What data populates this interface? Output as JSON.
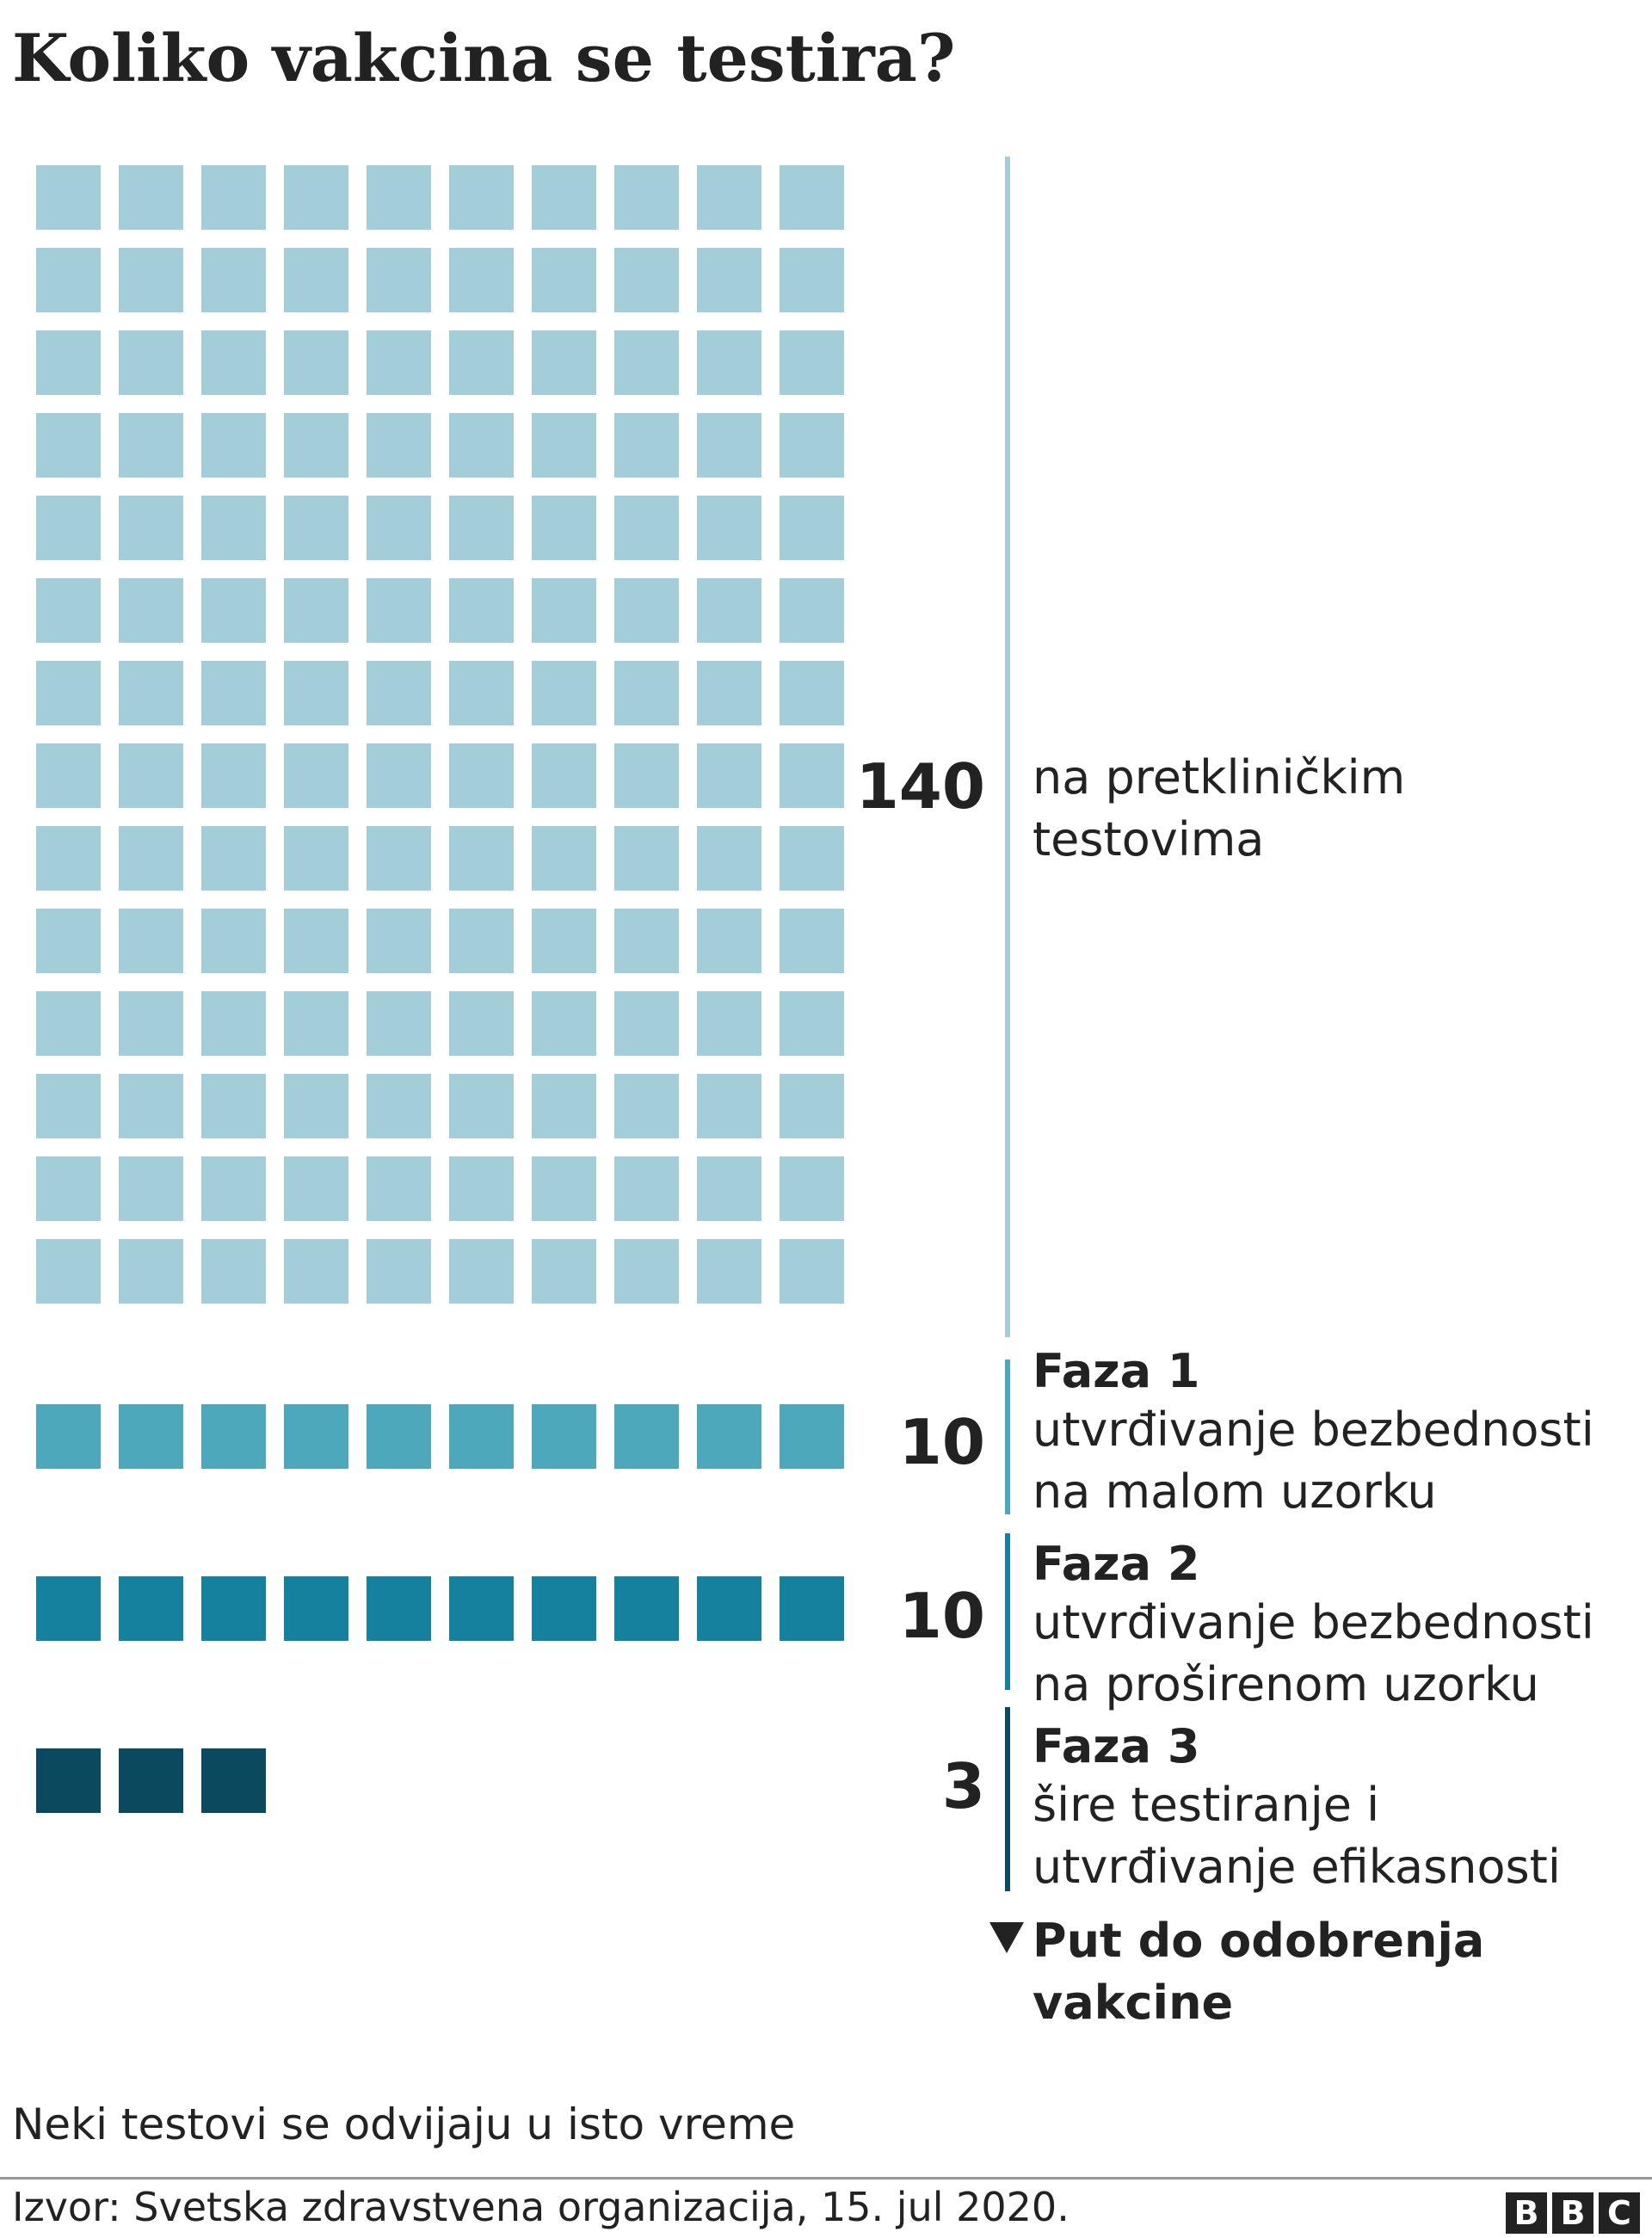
{
  "title": "Koliko vakcina se testira?",
  "chart_data": {
    "type": "waffle",
    "title": "Koliko vakcina se testira?",
    "unit_per_square": 1,
    "squares_per_row": 10,
    "series": [
      {
        "name": "na pretkliničkim testovima",
        "count_label": "140",
        "value": 140,
        "heading": "",
        "desc_lines": [
          "na pretkliničkim",
          "testovima"
        ],
        "color": "#a3cdd9"
      },
      {
        "name": "Faza 1",
        "count_label": "10",
        "value": 10,
        "heading": "Faza 1",
        "desc_lines": [
          "utvrđivanje bezbednosti",
          "na malom uzorku"
        ],
        "color": "#4da8bc"
      },
      {
        "name": "Faza 2",
        "count_label": "10",
        "value": 10,
        "heading": "Faza 2",
        "desc_lines": [
          "utvrđivanje bezbednosti",
          "na proširenom uzorku"
        ],
        "color": "#15819f"
      },
      {
        "name": "Faza 3",
        "count_label": "3",
        "value": 3,
        "heading": "Faza 3",
        "desc_lines": [
          "šire testiranje i",
          "utvrđivanje efikasnosti"
        ],
        "color": "#0b4a5e"
      }
    ]
  },
  "arrow_label": {
    "line1": "Put do odobrenja",
    "line2": "vakcine"
  },
  "note": "Neki testovi se odvijaju u isto vreme",
  "source": "Izvor: Svetska zdravstvena organizacija, 15. jul 2020.",
  "logo": {
    "letters": [
      "B",
      "B",
      "C"
    ]
  }
}
